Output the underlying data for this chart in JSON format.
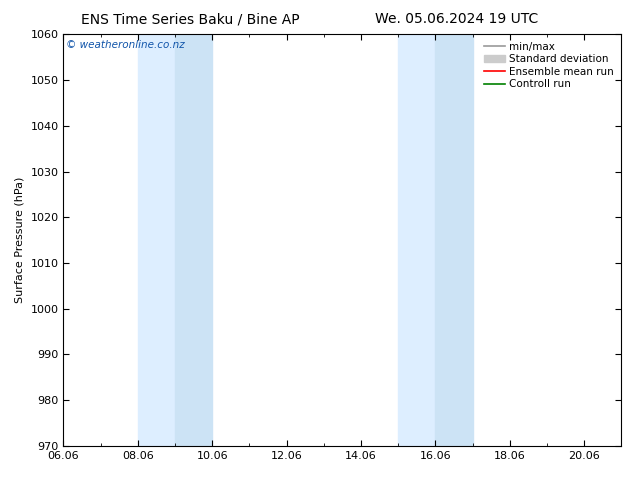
{
  "title_left": "ENS Time Series Baku / Bine AP",
  "title_right": "We. 05.06.2024 19 UTC",
  "ylabel": "Surface Pressure (hPa)",
  "ylim": [
    970,
    1060
  ],
  "yticks": [
    970,
    980,
    990,
    1000,
    1010,
    1020,
    1030,
    1040,
    1050,
    1060
  ],
  "xtick_labels": [
    "06.06",
    "08.06",
    "10.06",
    "12.06",
    "14.06",
    "16.06",
    "18.06",
    "20.06"
  ],
  "xtick_positions": [
    0,
    2,
    4,
    6,
    8,
    10,
    12,
    14
  ],
  "xlim": [
    0,
    15
  ],
  "shaded_bands": [
    {
      "xstart": 2.0,
      "xend": 3.0,
      "color": "#ddeeff"
    },
    {
      "xstart": 3.0,
      "xend": 4.0,
      "color": "#cce3f5"
    },
    {
      "xstart": 9.0,
      "xend": 10.0,
      "color": "#ddeeff"
    },
    {
      "xstart": 10.0,
      "xend": 11.0,
      "color": "#cce3f5"
    }
  ],
  "watermark": "© weatheronline.co.nz",
  "legend_entries": [
    {
      "label": "min/max",
      "color": "#999999",
      "lw": 1.2,
      "style": "solid"
    },
    {
      "label": "Standard deviation",
      "color": "#cccccc",
      "lw": 6,
      "style": "solid"
    },
    {
      "label": "Ensemble mean run",
      "color": "red",
      "lw": 1.2,
      "style": "solid"
    },
    {
      "label": "Controll run",
      "color": "green",
      "lw": 1.2,
      "style": "solid"
    }
  ],
  "background_color": "#ffffff",
  "title_fontsize": 10,
  "axis_label_fontsize": 8,
  "tick_fontsize": 8,
  "legend_fontsize": 7.5
}
